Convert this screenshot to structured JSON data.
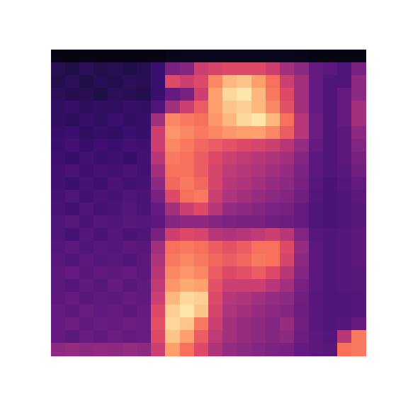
{
  "chart_data": {
    "type": "heatmap",
    "tick_labels": false,
    "color": "magma",
    "zlim": [
      0,
      1
    ],
    "cells": [
      [
        0.03,
        0.03,
        0.03,
        0.03,
        0.03,
        0.03,
        0.03,
        0.03,
        0.04,
        0.05,
        0.05,
        0.05,
        0.05,
        0.05,
        0.05,
        0.05,
        0.05,
        0.04,
        0.03,
        0.03,
        0.03,
        0.03
      ],
      [
        0.15,
        0.13,
        0.16,
        0.14,
        0.15,
        0.13,
        0.15,
        0.2,
        0.35,
        0.38,
        0.55,
        0.58,
        0.6,
        0.6,
        0.6,
        0.55,
        0.45,
        0.4,
        0.3,
        0.28,
        0.25,
        0.35
      ],
      [
        0.14,
        0.16,
        0.13,
        0.15,
        0.14,
        0.16,
        0.15,
        0.2,
        0.6,
        0.55,
        0.6,
        0.75,
        0.85,
        0.88,
        0.8,
        0.7,
        0.55,
        0.45,
        0.3,
        0.25,
        0.25,
        0.4
      ],
      [
        0.16,
        0.14,
        0.15,
        0.13,
        0.16,
        0.15,
        0.14,
        0.2,
        0.3,
        0.35,
        0.55,
        0.8,
        0.92,
        0.95,
        0.85,
        0.72,
        0.6,
        0.45,
        0.3,
        0.25,
        0.3,
        0.4
      ],
      [
        0.17,
        0.19,
        0.16,
        0.18,
        0.17,
        0.19,
        0.18,
        0.25,
        0.45,
        0.55,
        0.65,
        0.8,
        0.88,
        0.9,
        0.85,
        0.75,
        0.62,
        0.45,
        0.3,
        0.25,
        0.3,
        0.45
      ],
      [
        0.18,
        0.16,
        0.19,
        0.17,
        0.2,
        0.18,
        0.19,
        0.45,
        0.75,
        0.72,
        0.7,
        0.78,
        0.85,
        0.92,
        0.95,
        0.85,
        0.7,
        0.5,
        0.32,
        0.25,
        0.3,
        0.45
      ],
      [
        0.19,
        0.2,
        0.17,
        0.19,
        0.18,
        0.2,
        0.19,
        0.55,
        0.78,
        0.75,
        0.72,
        0.75,
        0.78,
        0.8,
        0.8,
        0.75,
        0.65,
        0.5,
        0.32,
        0.25,
        0.28,
        0.4
      ],
      [
        0.2,
        0.22,
        0.19,
        0.21,
        0.2,
        0.22,
        0.21,
        0.55,
        0.75,
        0.72,
        0.68,
        0.65,
        0.62,
        0.6,
        0.58,
        0.55,
        0.5,
        0.42,
        0.3,
        0.25,
        0.28,
        0.38
      ],
      [
        0.21,
        0.19,
        0.22,
        0.2,
        0.21,
        0.19,
        0.22,
        0.5,
        0.72,
        0.7,
        0.65,
        0.6,
        0.55,
        0.52,
        0.5,
        0.48,
        0.45,
        0.38,
        0.28,
        0.25,
        0.28,
        0.35
      ],
      [
        0.22,
        0.24,
        0.21,
        0.23,
        0.22,
        0.24,
        0.22,
        0.45,
        0.7,
        0.7,
        0.65,
        0.58,
        0.52,
        0.5,
        0.48,
        0.45,
        0.42,
        0.36,
        0.28,
        0.25,
        0.27,
        0.33
      ],
      [
        0.22,
        0.2,
        0.23,
        0.21,
        0.24,
        0.22,
        0.23,
        0.4,
        0.68,
        0.72,
        0.68,
        0.58,
        0.5,
        0.48,
        0.45,
        0.42,
        0.4,
        0.35,
        0.27,
        0.24,
        0.26,
        0.3
      ],
      [
        0.23,
        0.25,
        0.22,
        0.24,
        0.23,
        0.25,
        0.24,
        0.35,
        0.6,
        0.7,
        0.72,
        0.55,
        0.48,
        0.45,
        0.42,
        0.4,
        0.38,
        0.33,
        0.26,
        0.24,
        0.25,
        0.28
      ],
      [
        0.24,
        0.22,
        0.25,
        0.23,
        0.24,
        0.26,
        0.24,
        0.3,
        0.45,
        0.55,
        0.6,
        0.5,
        0.42,
        0.4,
        0.38,
        0.36,
        0.35,
        0.3,
        0.25,
        0.24,
        0.25,
        0.27
      ],
      [
        0.25,
        0.27,
        0.24,
        0.26,
        0.25,
        0.27,
        0.26,
        0.28,
        0.38,
        0.4,
        0.4,
        0.38,
        0.36,
        0.35,
        0.35,
        0.33,
        0.32,
        0.3,
        0.25,
        0.24,
        0.25,
        0.27
      ],
      [
        0.25,
        0.23,
        0.26,
        0.24,
        0.26,
        0.24,
        0.25,
        0.35,
        0.55,
        0.6,
        0.58,
        0.5,
        0.48,
        0.5,
        0.52,
        0.55,
        0.5,
        0.38,
        0.27,
        0.25,
        0.26,
        0.28
      ],
      [
        0.26,
        0.28,
        0.25,
        0.27,
        0.26,
        0.28,
        0.27,
        0.45,
        0.7,
        0.72,
        0.7,
        0.65,
        0.62,
        0.65,
        0.7,
        0.7,
        0.6,
        0.42,
        0.28,
        0.25,
        0.26,
        0.28
      ],
      [
        0.27,
        0.25,
        0.28,
        0.26,
        0.27,
        0.25,
        0.28,
        0.48,
        0.72,
        0.75,
        0.72,
        0.68,
        0.65,
        0.68,
        0.72,
        0.7,
        0.58,
        0.4,
        0.28,
        0.25,
        0.26,
        0.28
      ],
      [
        0.28,
        0.3,
        0.27,
        0.29,
        0.28,
        0.3,
        0.28,
        0.5,
        0.75,
        0.78,
        0.75,
        0.65,
        0.6,
        0.62,
        0.65,
        0.6,
        0.5,
        0.38,
        0.28,
        0.25,
        0.26,
        0.27
      ],
      [
        0.28,
        0.26,
        0.29,
        0.27,
        0.3,
        0.27,
        0.29,
        0.52,
        0.78,
        0.82,
        0.8,
        0.62,
        0.55,
        0.55,
        0.55,
        0.5,
        0.45,
        0.35,
        0.28,
        0.25,
        0.26,
        0.27
      ],
      [
        0.28,
        0.3,
        0.27,
        0.29,
        0.28,
        0.3,
        0.29,
        0.55,
        0.85,
        0.92,
        0.9,
        0.6,
        0.5,
        0.48,
        0.45,
        0.42,
        0.4,
        0.33,
        0.27,
        0.25,
        0.25,
        0.26
      ],
      [
        0.3,
        0.28,
        0.31,
        0.29,
        0.3,
        0.28,
        0.3,
        0.6,
        0.9,
        0.95,
        0.88,
        0.58,
        0.48,
        0.45,
        0.42,
        0.4,
        0.38,
        0.32,
        0.27,
        0.25,
        0.25,
        0.26
      ],
      [
        0.3,
        0.32,
        0.29,
        0.31,
        0.3,
        0.32,
        0.31,
        0.62,
        0.92,
        0.88,
        0.72,
        0.55,
        0.45,
        0.42,
        0.4,
        0.38,
        0.42,
        0.33,
        0.27,
        0.25,
        0.26,
        0.3
      ],
      [
        0.3,
        0.28,
        0.31,
        0.29,
        0.32,
        0.3,
        0.31,
        0.6,
        0.88,
        0.8,
        0.65,
        0.52,
        0.45,
        0.42,
        0.4,
        0.38,
        0.4,
        0.32,
        0.28,
        0.26,
        0.5,
        0.72
      ],
      [
        0.4,
        0.42,
        0.4,
        0.41,
        0.4,
        0.42,
        0.4,
        0.55,
        0.8,
        0.7,
        0.6,
        0.48,
        0.42,
        0.4,
        0.38,
        0.36,
        0.35,
        0.3,
        0.28,
        0.27,
        0.7,
        0.72
      ]
    ]
  }
}
